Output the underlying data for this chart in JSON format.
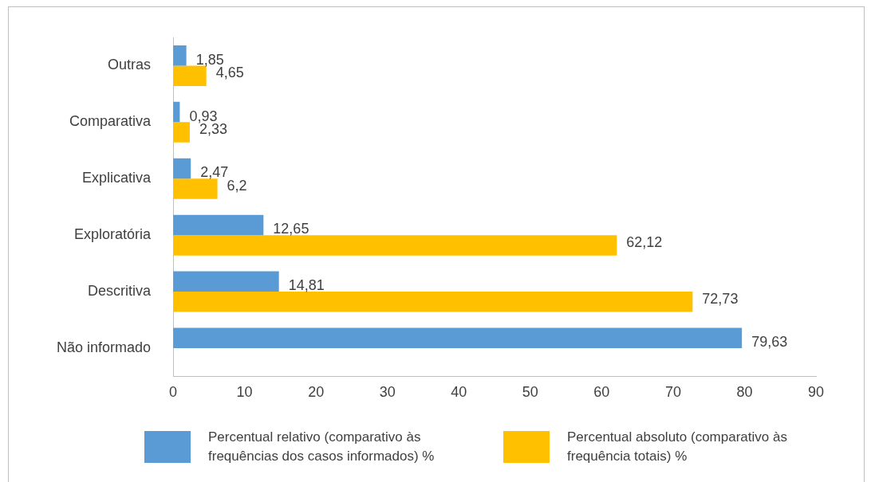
{
  "chart_data": {
    "type": "bar",
    "orientation": "horizontal",
    "categories": [
      "Outras",
      "Comparativa",
      "Explicativa",
      "Exploratória",
      "Descritiva",
      "Não informado"
    ],
    "series": [
      {
        "name": "Percentual relativo (comparativo às frequências dos casos informados) %",
        "color": "#5b9bd5",
        "values": [
          1.85,
          0.93,
          2.47,
          12.65,
          14.81,
          79.63
        ],
        "value_labels": [
          "1,85",
          "0,93",
          "2,47",
          "12,65",
          "14,81",
          "79,63"
        ]
      },
      {
        "name": "Percentual absoluto (comparativo às frequência totais) %",
        "color": "#ffc000",
        "values": [
          4.65,
          2.33,
          6.2,
          62.12,
          72.73,
          null
        ],
        "value_labels": [
          "4,65",
          "2,33",
          "6,2",
          "62,12",
          "72,73",
          null
        ]
      }
    ],
    "xlim": [
      0,
      90
    ],
    "xticks": [
      0,
      10,
      20,
      30,
      40,
      50,
      60,
      70,
      80,
      90
    ],
    "grid": false,
    "legend": "bottom"
  }
}
